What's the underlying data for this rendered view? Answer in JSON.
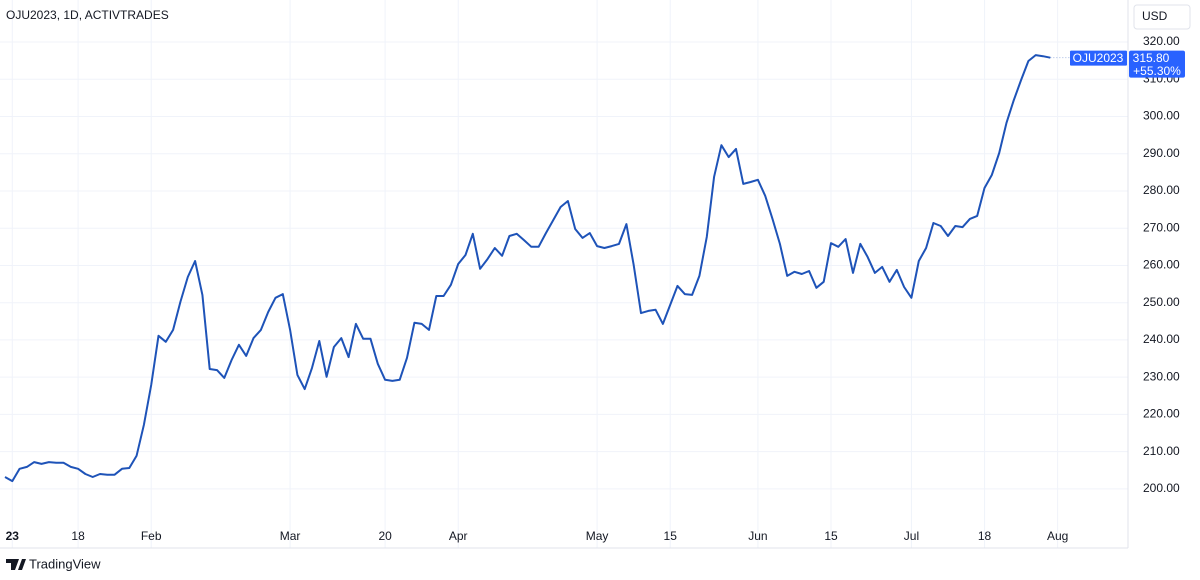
{
  "chart_data": {
    "type": "line",
    "title": "OJU2023, 1D, ACTIVTRADES",
    "currency": "USD",
    "footer": "TradingView",
    "last_value_label": "315.80",
    "change_label": "+55.30%",
    "grid": true,
    "ylim": [
      190.3,
      328.6
    ],
    "yticks": [
      {
        "value": 200,
        "label": "200.00"
      },
      {
        "value": 210,
        "label": "210.00"
      },
      {
        "value": 220,
        "label": "220.00"
      },
      {
        "value": 230,
        "label": "230.00"
      },
      {
        "value": 240,
        "label": "240.00"
      },
      {
        "value": 250,
        "label": "250.00"
      },
      {
        "value": 260,
        "label": "260.00"
      },
      {
        "value": 270,
        "label": "270.00"
      },
      {
        "value": 280,
        "label": "280.00"
      },
      {
        "value": 290,
        "label": "290.00"
      },
      {
        "value": 300,
        "label": "300.00"
      },
      {
        "value": 310,
        "label": "310.00"
      },
      {
        "value": 320,
        "label": "320.00"
      }
    ],
    "categories": [
      null,
      "23",
      null,
      null,
      null,
      null,
      null,
      null,
      null,
      null,
      "18",
      null,
      null,
      null,
      null,
      null,
      null,
      null,
      null,
      null,
      "Feb",
      null,
      null,
      null,
      null,
      null,
      null,
      null,
      null,
      null,
      null,
      null,
      null,
      null,
      null,
      null,
      null,
      null,
      null,
      "Mar",
      null,
      null,
      null,
      null,
      null,
      null,
      null,
      null,
      null,
      null,
      null,
      null,
      "20",
      null,
      null,
      null,
      null,
      null,
      null,
      null,
      null,
      null,
      "Apr",
      null,
      null,
      null,
      null,
      null,
      null,
      null,
      null,
      null,
      null,
      null,
      null,
      null,
      null,
      null,
      null,
      null,
      null,
      "May",
      null,
      null,
      null,
      null,
      null,
      null,
      null,
      null,
      null,
      "15",
      null,
      null,
      null,
      null,
      null,
      null,
      null,
      null,
      null,
      null,
      null,
      "Jun",
      null,
      null,
      null,
      null,
      null,
      null,
      null,
      null,
      null,
      "15",
      null,
      null,
      null,
      null,
      null,
      null,
      null,
      null,
      null,
      null,
      "Jul",
      null,
      null,
      null,
      null,
      null,
      null,
      null,
      null,
      null,
      "18",
      null,
      null,
      null,
      null,
      null,
      null,
      null,
      null,
      null,
      "Aug"
    ],
    "series": [
      {
        "name": "OJU2023",
        "color": "#1e53b8",
        "values": [
          203.2,
          202.1,
          205.4,
          205.9,
          207.2,
          206.7,
          207.2,
          207.0,
          207.0,
          205.9,
          205.4,
          204.0,
          203.2,
          204.0,
          203.8,
          203.8,
          205.4,
          205.6,
          208.9,
          217.2,
          227.9,
          241.1,
          239.5,
          242.7,
          250.2,
          256.9,
          261.2,
          252.1,
          232.2,
          231.9,
          229.8,
          234.6,
          238.7,
          235.7,
          240.5,
          242.7,
          247.5,
          251.3,
          252.3,
          242.7,
          230.6,
          226.8,
          232.5,
          239.7,
          230.1,
          238.1,
          240.5,
          235.4,
          244.3,
          240.3,
          240.3,
          233.6,
          229.3,
          229.0,
          229.3,
          235.2,
          244.6,
          244.3,
          242.7,
          251.8,
          251.8,
          254.8,
          260.4,
          262.8,
          268.5,
          259.1,
          261.7,
          264.7,
          262.6,
          267.9,
          268.5,
          266.8,
          265.0,
          265.0,
          268.7,
          272.2,
          275.7,
          277.3,
          269.8,
          267.4,
          268.7,
          265.2,
          264.7,
          265.2,
          265.8,
          271.1,
          260.1,
          247.2,
          247.8,
          248.1,
          244.3,
          249.4,
          254.5,
          252.3,
          252.1,
          257.2,
          267.7,
          283.8,
          292.3,
          289.1,
          291.3,
          281.9,
          282.4,
          283.0,
          278.7,
          272.5,
          265.8,
          257.2,
          258.3,
          257.7,
          258.5,
          254.0,
          255.6,
          266.0,
          265.0,
          267.1,
          258.0,
          265.8,
          262.3,
          258.0,
          259.6,
          255.6,
          258.8,
          254.2,
          251.3,
          261.2,
          264.7,
          271.4,
          270.6,
          267.9,
          270.6,
          270.3,
          272.5,
          273.3,
          280.8,
          284.3,
          290.2,
          298.3,
          304.4,
          309.8,
          314.9,
          316.5,
          316.2,
          315.8,
          null
        ]
      }
    ]
  }
}
